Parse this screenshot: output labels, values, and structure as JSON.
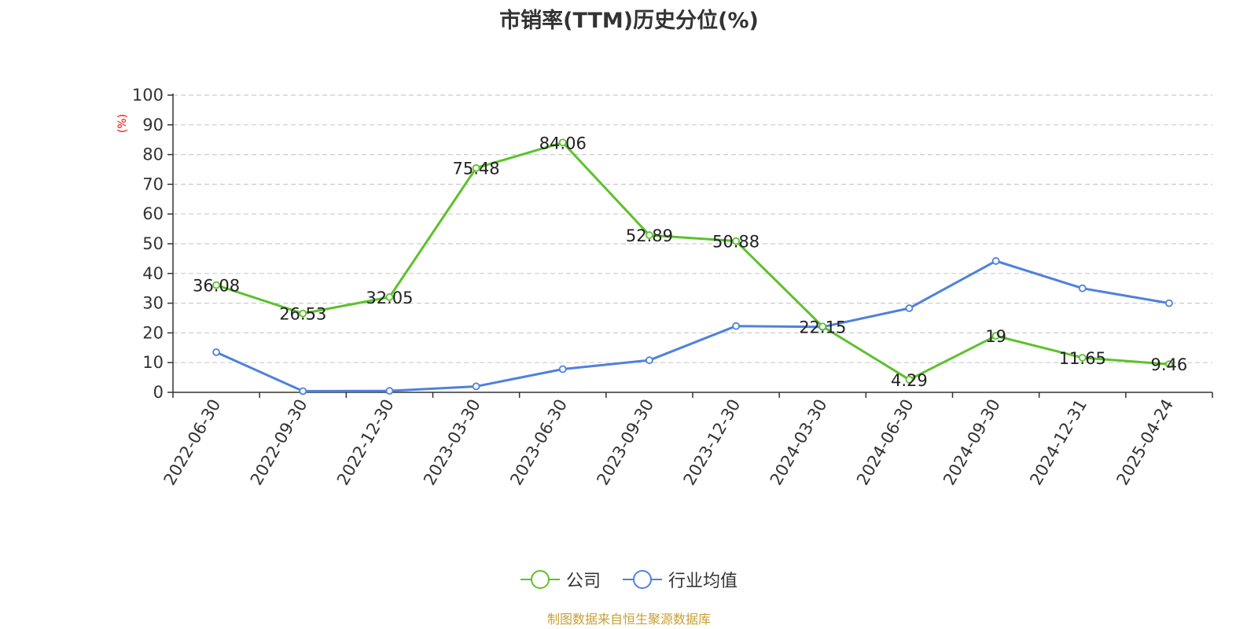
{
  "chart_data": {
    "type": "line",
    "title": "市销率(TTM)历史分位(%)",
    "ylabel": "(%)",
    "xlabel": "",
    "ylim": [
      0,
      100
    ],
    "yticks": [
      0,
      10,
      20,
      30,
      40,
      50,
      60,
      70,
      80,
      90,
      100
    ],
    "grid": true,
    "legend_position": "bottom",
    "categories": [
      "2022-06-30",
      "2022-09-30",
      "2022-12-30",
      "2023-03-30",
      "2023-06-30",
      "2023-09-30",
      "2023-12-30",
      "2024-03-30",
      "2024-06-30",
      "2024-09-30",
      "2024-12-31",
      "2025-04-24"
    ],
    "series": [
      {
        "name": "公司",
        "color": "#5cc12c",
        "values": [
          36.08,
          26.53,
          32.05,
          75.48,
          84.06,
          52.89,
          50.88,
          22.15,
          4.29,
          19,
          11.65,
          9.46
        ],
        "labels": [
          "36.08",
          "26.53",
          "32.05",
          "75.48",
          "84.06",
          "52.89",
          "50.88",
          "22.15",
          "4.29",
          "19",
          "11.65",
          "9.46"
        ]
      },
      {
        "name": "行业均值",
        "color": "#4f81dc",
        "values": [
          13.5,
          0.4,
          0.5,
          2.0,
          7.8,
          10.8,
          22.3,
          22.0,
          28.3,
          44.2,
          35.0,
          30.0
        ]
      }
    ]
  },
  "source_note": "制图数据来自恒生聚源数据库"
}
